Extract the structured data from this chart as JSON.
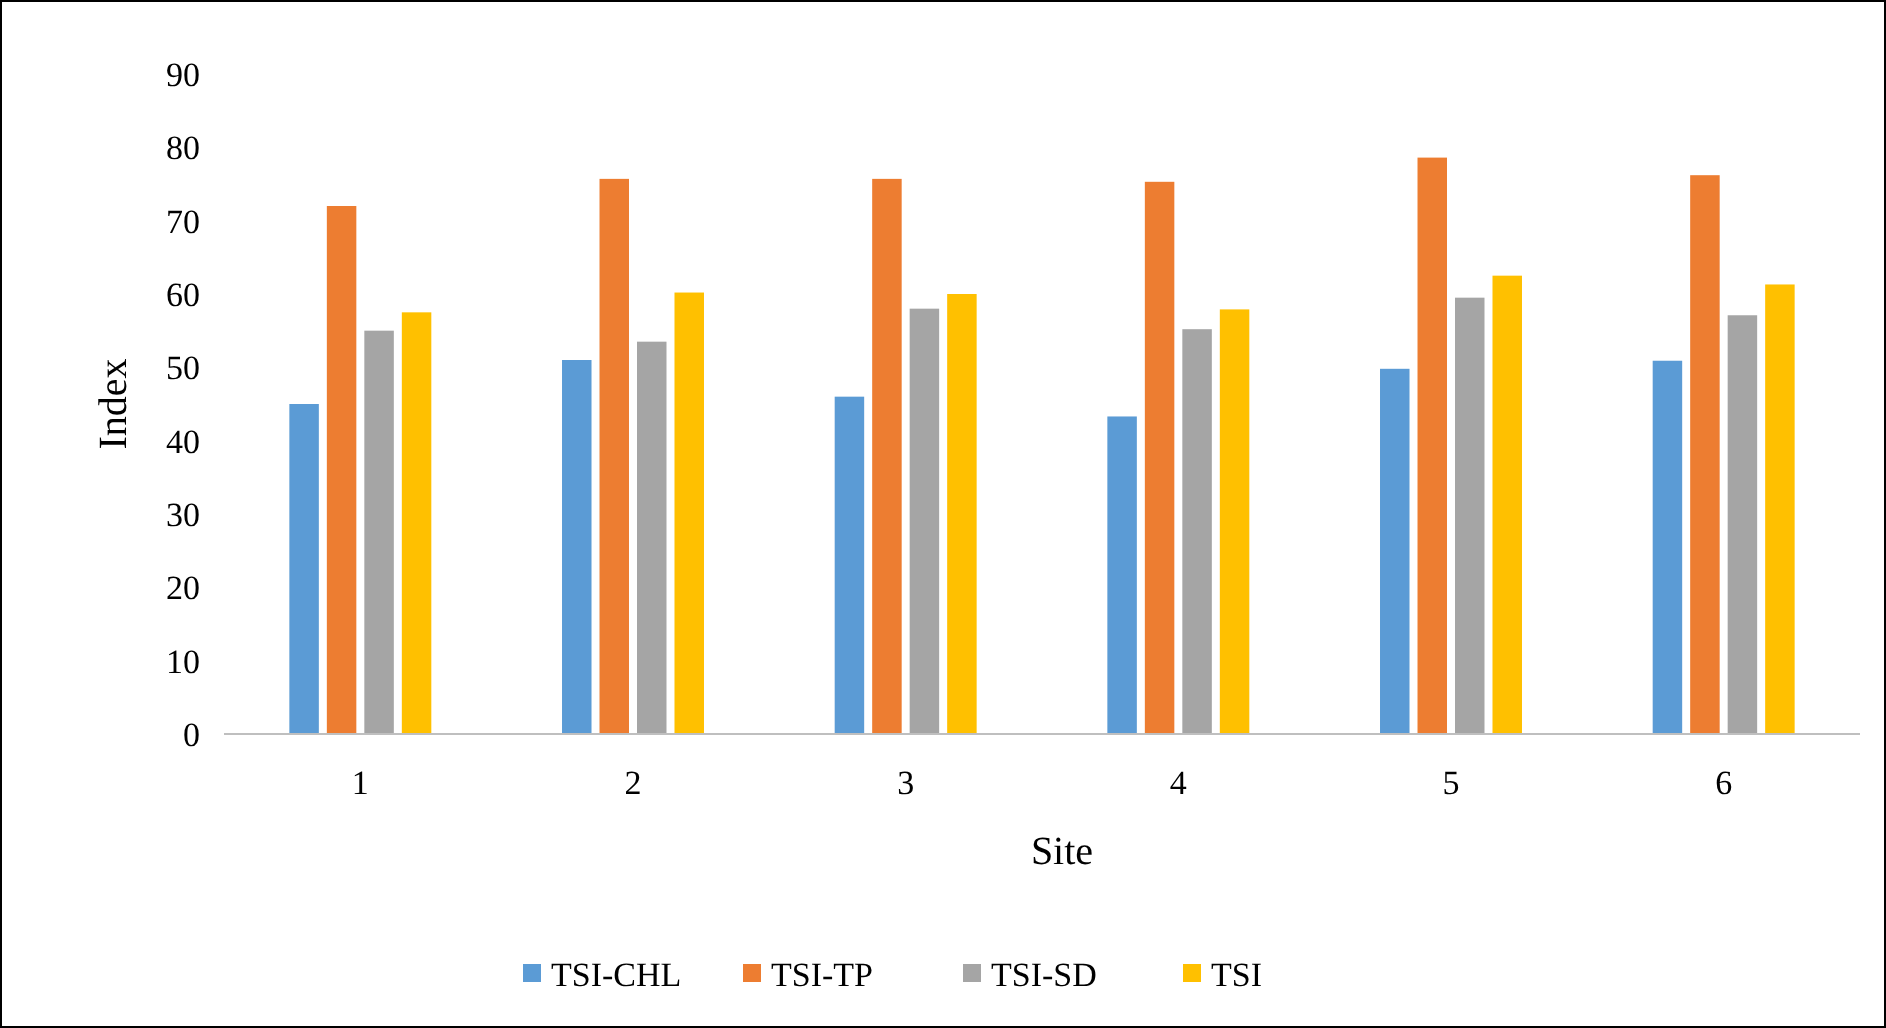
{
  "chart_data": {
    "type": "bar",
    "xlabel": "Site",
    "ylabel": "Index",
    "categories": [
      "1",
      "2",
      "3",
      "4",
      "5",
      "6"
    ],
    "series": [
      {
        "name": "TSI-CHL",
        "color": "#5b9bd5",
        "values": [
          45,
          51,
          46,
          43.3,
          49.8,
          50.9
        ]
      },
      {
        "name": "TSI-TP",
        "color": "#ed7d31",
        "values": [
          72,
          75.7,
          75.7,
          75.3,
          78.6,
          76.2
        ]
      },
      {
        "name": "TSI-SD",
        "color": "#a5a5a5",
        "values": [
          55,
          53.5,
          58,
          55.2,
          59.5,
          57.1
        ]
      },
      {
        "name": "TSI",
        "color": "#ffc000",
        "values": [
          57.5,
          60.2,
          60,
          57.9,
          62.5,
          61.3
        ]
      }
    ],
    "ylim": [
      0,
      90
    ],
    "yticks": [
      0,
      10,
      20,
      30,
      40,
      50,
      60,
      70,
      80,
      90
    ],
    "grid": false,
    "legend": "bottom"
  }
}
